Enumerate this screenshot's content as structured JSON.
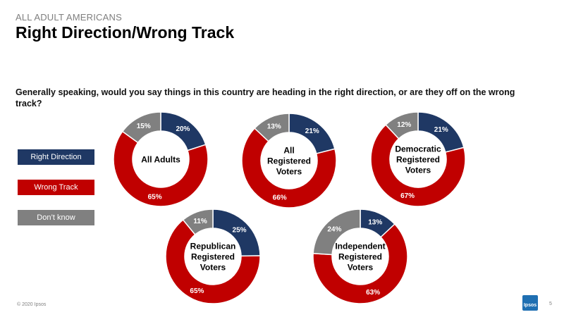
{
  "header": {
    "kicker": "ALL ADULT AMERICANS",
    "title": "Right Direction/Wrong Track"
  },
  "question": "Generally speaking, would you say things in this country are heading in the right direction, or are they off on the wrong track?",
  "legend": [
    {
      "label": "Right Direction",
      "color": "#1f3864"
    },
    {
      "label": "Wrong Track",
      "color": "#c00000"
    },
    {
      "label": "Don’t know",
      "color": "#808080"
    }
  ],
  "chart_data": {
    "type": "donut",
    "order": [
      "Right Direction",
      "Wrong Track",
      "Don’t know"
    ],
    "colors": [
      "#1f3864",
      "#c00000",
      "#808080"
    ],
    "charts": [
      {
        "center_label": [
          "All Adults"
        ],
        "values": [
          20,
          65,
          15
        ],
        "labels": [
          "20%",
          "65%",
          "15%"
        ]
      },
      {
        "center_label": [
          "All",
          "Registered",
          "Voters"
        ],
        "values": [
          21,
          66,
          13
        ],
        "labels": [
          "21%",
          "66%",
          "13%"
        ]
      },
      {
        "center_label": [
          "Democratic",
          "Registered",
          "Voters"
        ],
        "values": [
          21,
          67,
          12
        ],
        "labels": [
          "21%",
          "67%",
          "12%"
        ]
      },
      {
        "center_label": [
          "Republican",
          "Registered",
          "Voters"
        ],
        "values": [
          25,
          65,
          11
        ],
        "labels": [
          "25%",
          "65%",
          "11%"
        ]
      },
      {
        "center_label": [
          "Independent",
          "Registered",
          "Voters"
        ],
        "values": [
          13,
          63,
          24
        ],
        "labels": [
          "13%",
          "63%",
          "24%"
        ]
      }
    ]
  },
  "footer": {
    "copyright": "© 2020 Ipsos",
    "logo": "Ipsos",
    "page": "5"
  }
}
